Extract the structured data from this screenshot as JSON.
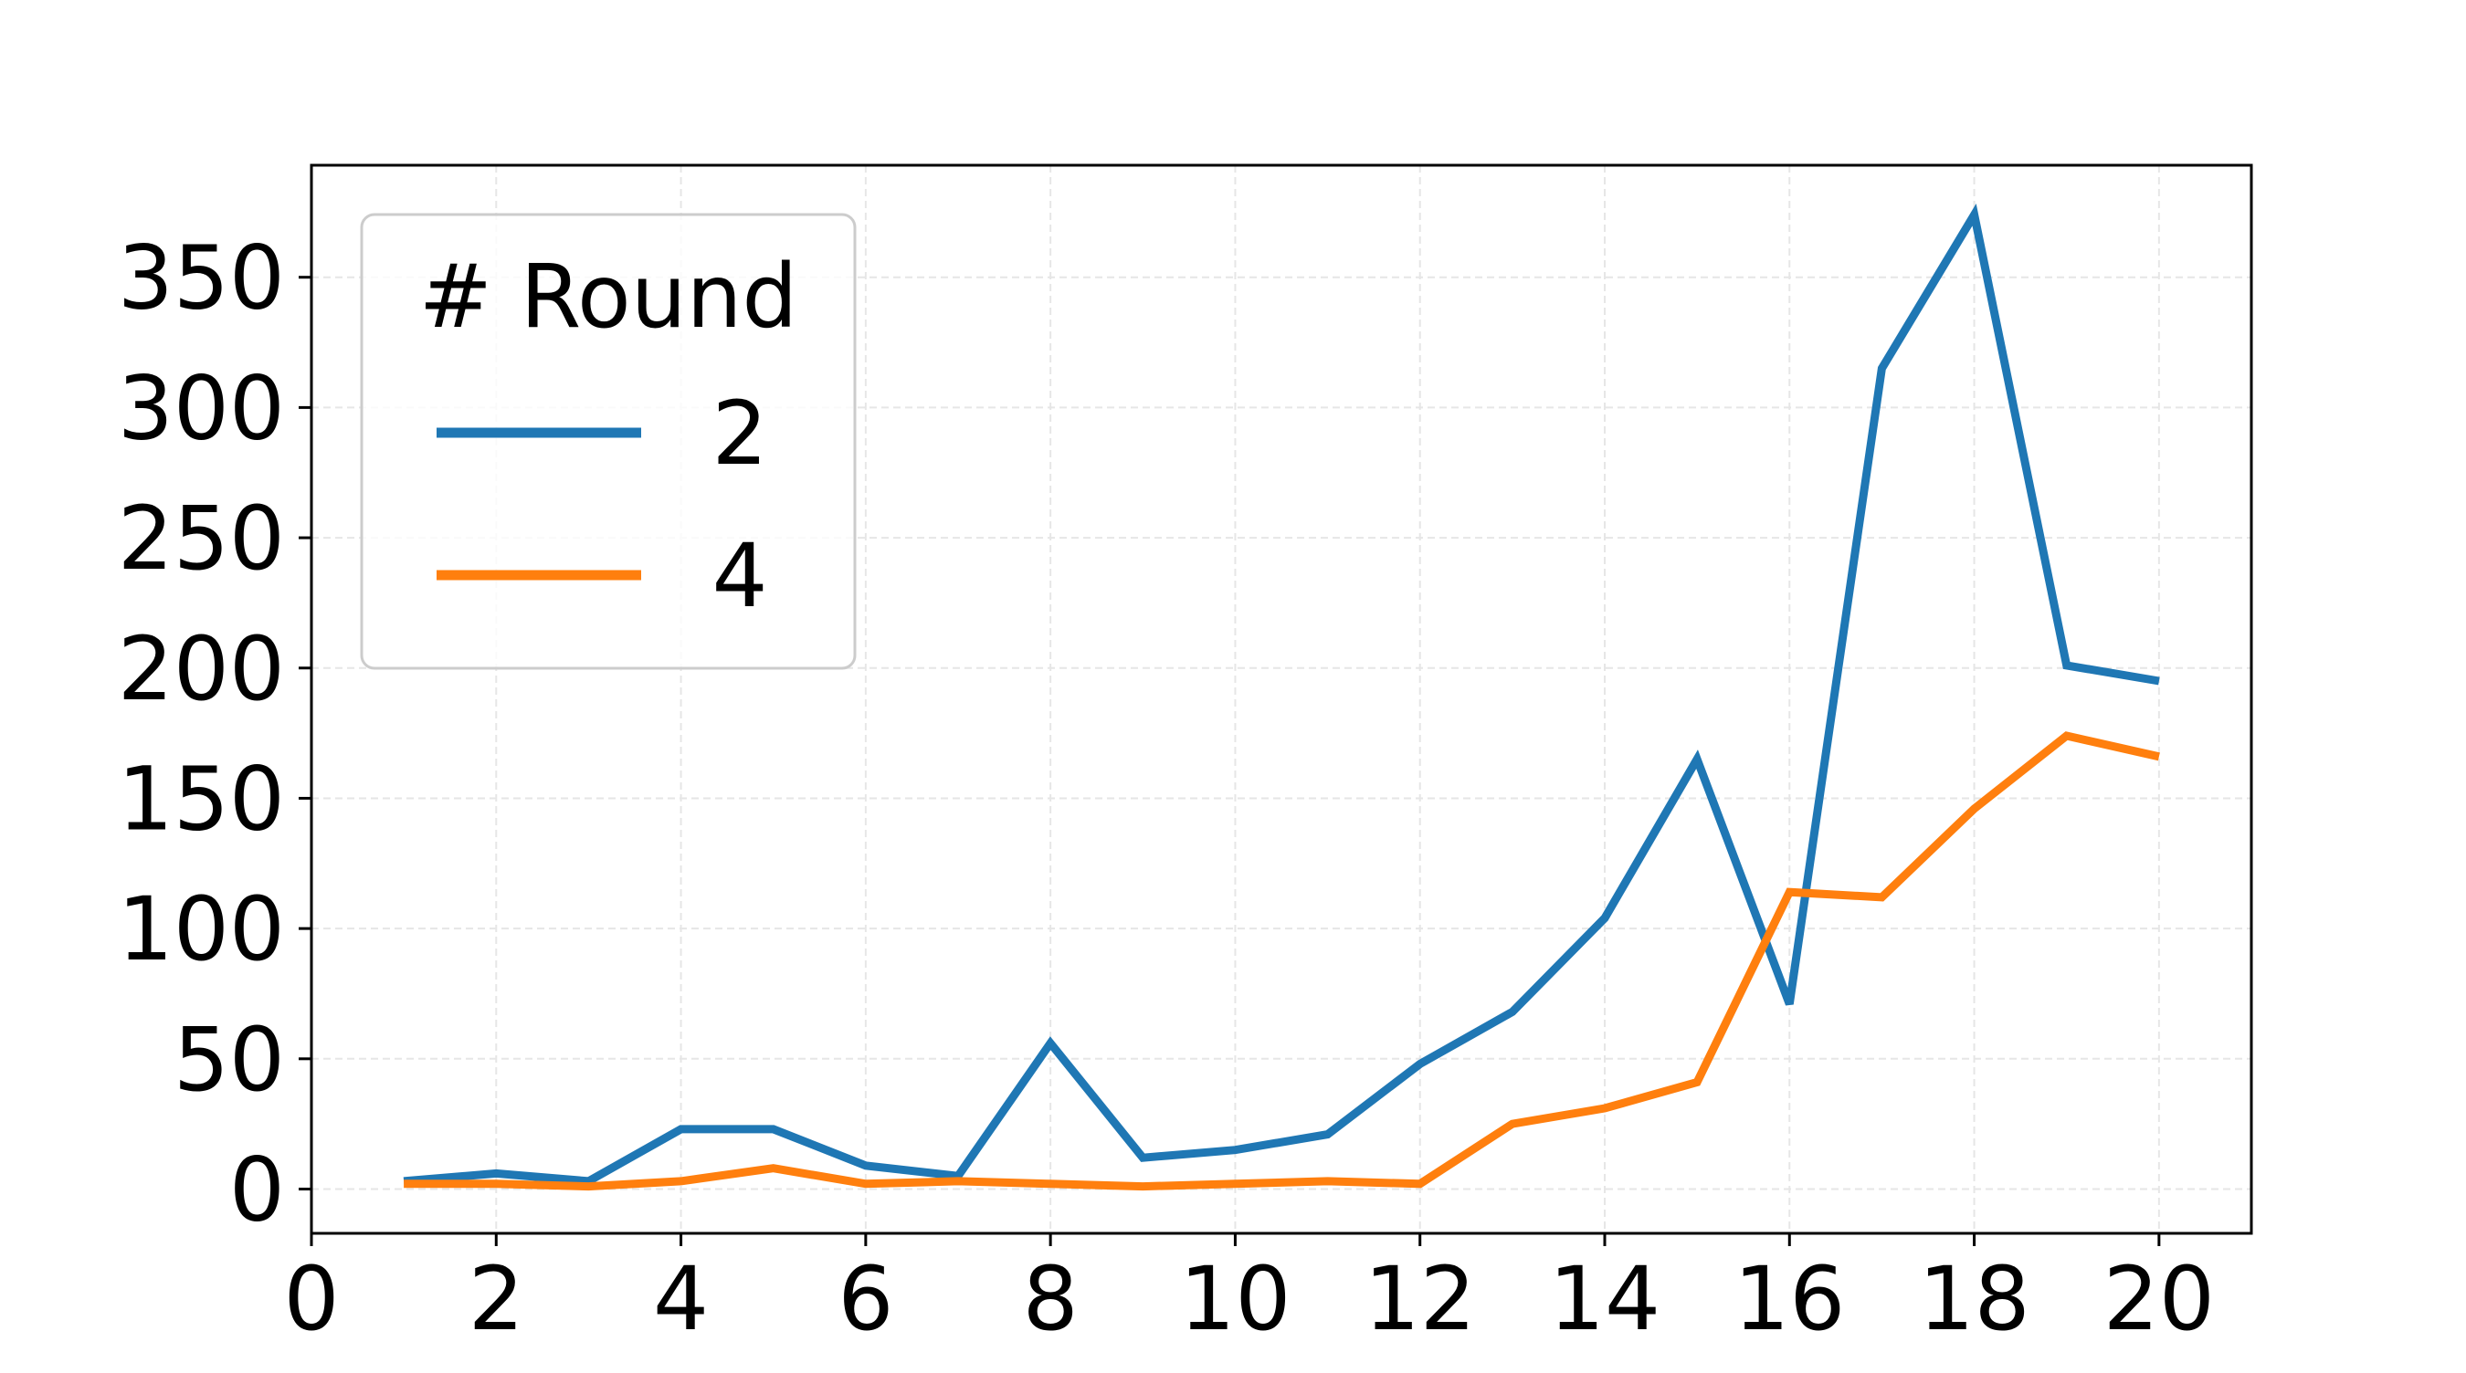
{
  "chart_data": {
    "type": "line",
    "title": "",
    "xlabel": "",
    "ylabel": "",
    "x": [
      1,
      2,
      3,
      4,
      5,
      6,
      7,
      8,
      9,
      10,
      11,
      12,
      13,
      14,
      15,
      16,
      17,
      18,
      19,
      20
    ],
    "xlim": [
      0,
      21
    ],
    "ylim": [
      -17,
      393
    ],
    "xticks": [
      0,
      2,
      4,
      6,
      8,
      10,
      12,
      14,
      16,
      18,
      20
    ],
    "xtick_labels": [
      "0",
      "2",
      "4",
      "6",
      "8",
      "10",
      "12",
      "14",
      "16",
      "18",
      "20"
    ],
    "yticks": [
      0,
      50,
      100,
      150,
      200,
      250,
      300,
      350
    ],
    "ytick_labels": [
      "0",
      "50",
      "100",
      "150",
      "200",
      "250",
      "300",
      "350"
    ],
    "grid": true,
    "legend": {
      "title": "# Round",
      "placement": "top-left"
    },
    "series": [
      {
        "name": "2",
        "color": "#1f77b4",
        "values": [
          3,
          6,
          3,
          23,
          23,
          9,
          5,
          56,
          12,
          15,
          21,
          48,
          68,
          104,
          165,
          71,
          315,
          374,
          201,
          195
        ]
      },
      {
        "name": "4",
        "color": "#ff7f0e",
        "values": [
          2,
          2,
          1,
          3,
          8,
          2,
          3,
          2,
          1,
          2,
          3,
          2,
          25,
          31,
          41,
          114,
          112,
          146,
          174,
          166
        ]
      }
    ]
  }
}
